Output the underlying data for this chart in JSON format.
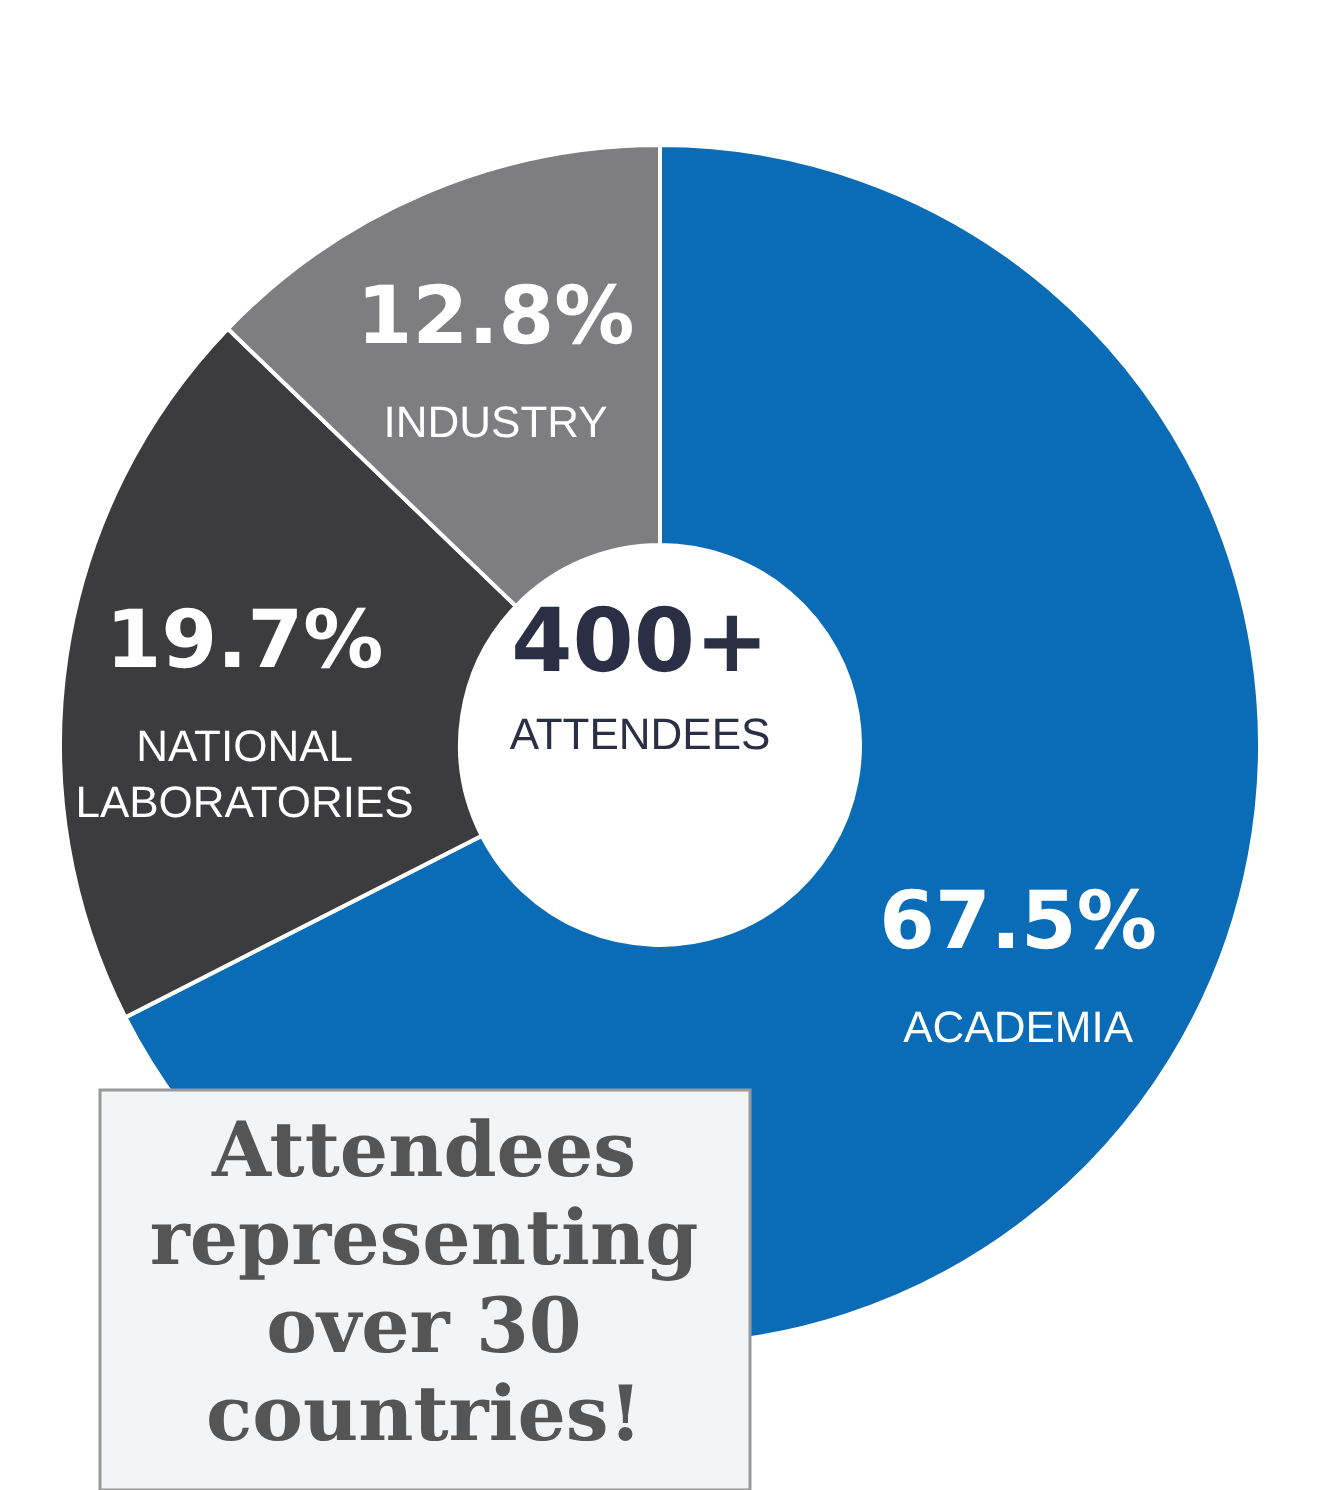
{
  "chart_data": {
    "type": "donut",
    "categories": [
      "ACADEMIA",
      "NATIONAL LABORATORIES",
      "INDUSTRY"
    ],
    "values": [
      67.5,
      19.7,
      12.8
    ],
    "colors": [
      "#0a6cb6",
      "#3c3c3e",
      "#7e7e81"
    ],
    "value_labels": [
      "67.5%",
      "19.7%",
      "12.8%"
    ],
    "annotations": [
      "400+",
      "ATTENDEES",
      "Attendees representing over 30 countries!"
    ]
  }
}
